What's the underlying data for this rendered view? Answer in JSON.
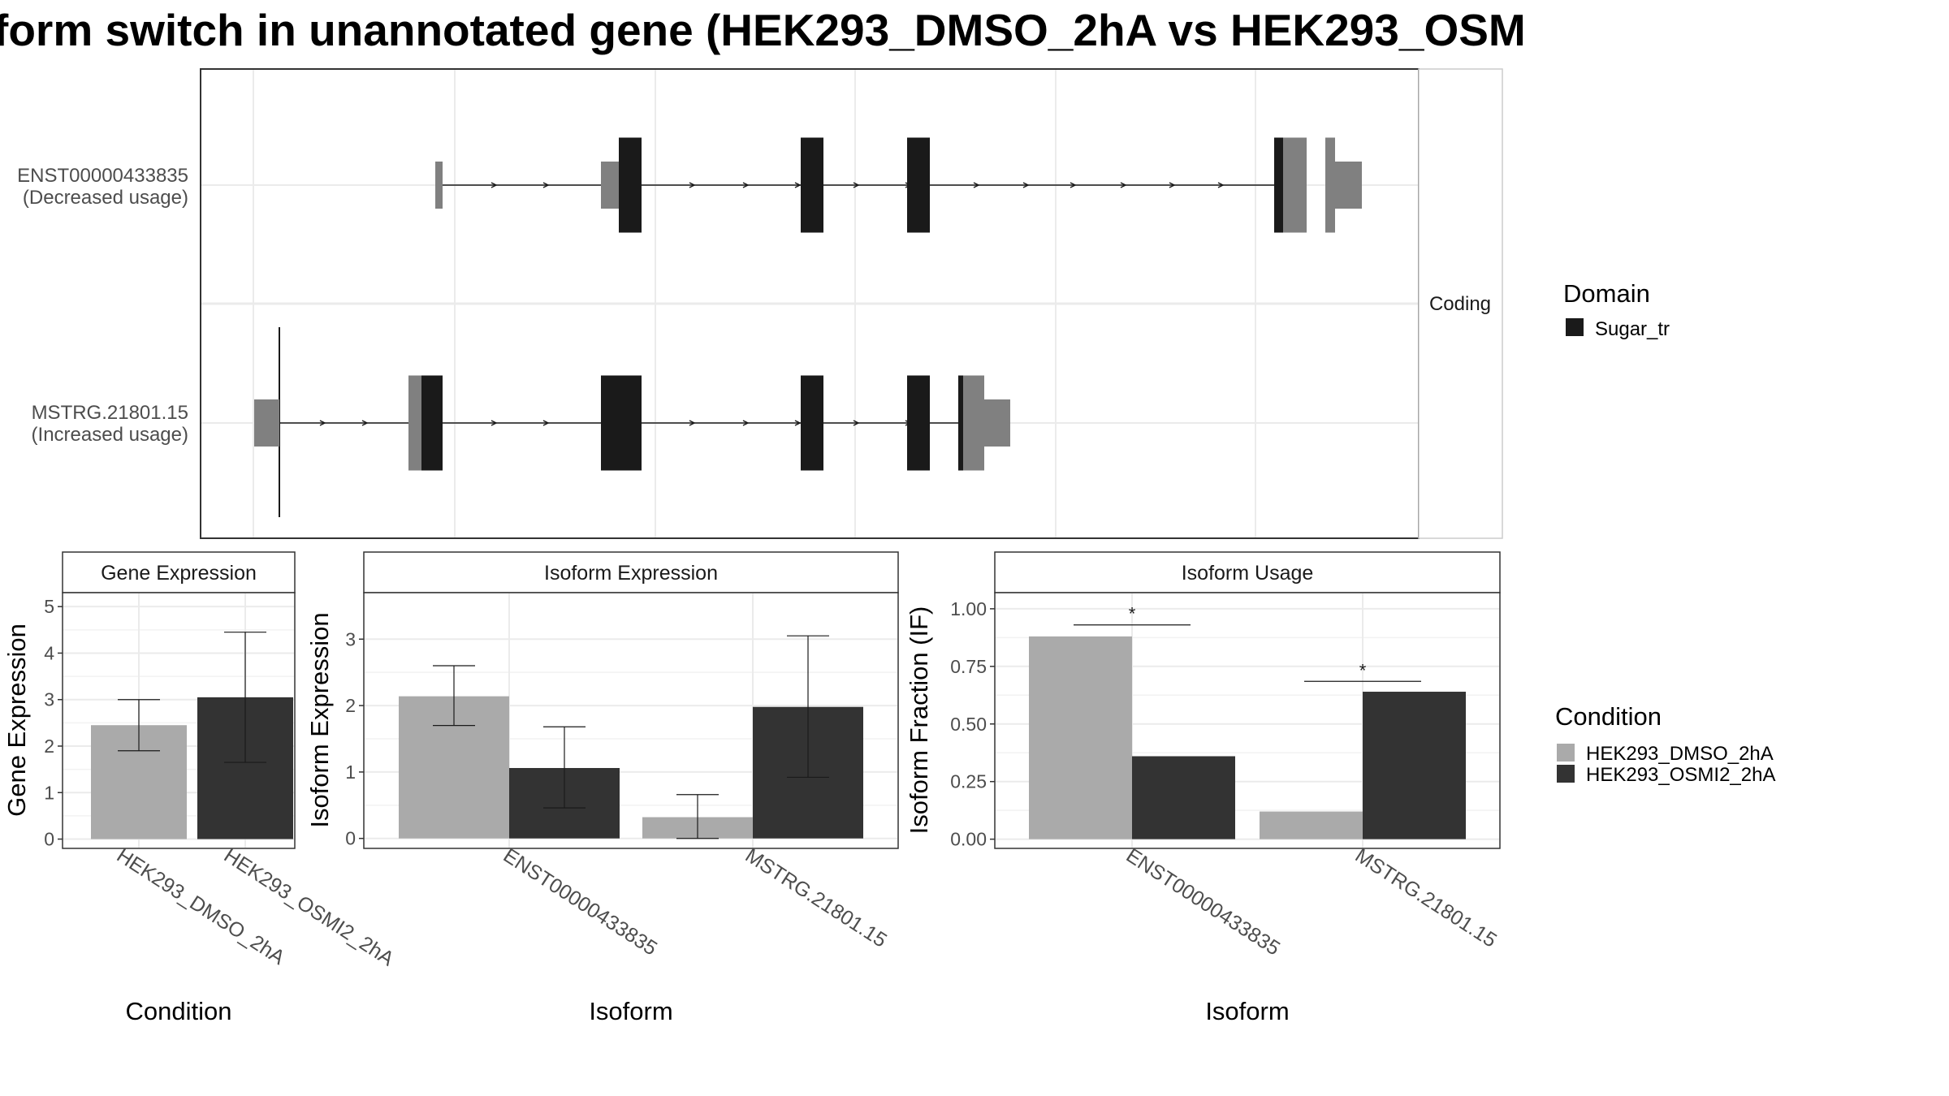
{
  "title": "form switch in unannotated gene (HEK293_DMSO_2hA vs HEK293_OSM",
  "colors": {
    "dmso": "#aaaaaa",
    "osmi": "#333333",
    "domain": "#1a1a1a",
    "utr": "#808080",
    "grid": "#ebebeb",
    "panel_border": "#333333",
    "strip_border": "#cccccc",
    "text": "#4d4d4d"
  },
  "transcript_plot": {
    "facet_label": "Coding",
    "isoforms": [
      {
        "id": "ENST00000433835",
        "usage": "(Decreased usage)"
      },
      {
        "id": "MSTRG.21801.15",
        "usage": "(Increased usage)"
      }
    ],
    "domain_legend": {
      "title": "Domain",
      "items": [
        "Sugar_tr"
      ]
    }
  },
  "chart_data": [
    {
      "type": "bar",
      "title": "Gene Expression",
      "xlabel": "Condition",
      "ylabel": "Gene Expression",
      "categories": [
        "HEK293_DMSO_2hA",
        "HEK293_OSMI2_2hA"
      ],
      "values": [
        2.45,
        3.05
      ],
      "error_low": [
        1.9,
        1.65
      ],
      "error_high": [
        3.0,
        4.45
      ],
      "ylim": [
        -0.2,
        5.3
      ],
      "yticks": [
        "0",
        "1",
        "2",
        "3",
        "4",
        "5"
      ],
      "ytick_values": [
        0,
        1,
        2,
        3,
        4,
        5
      ]
    },
    {
      "type": "bar",
      "title": "Isoform Expression",
      "xlabel": "Isoform",
      "ylabel": "Isoform Expression",
      "categories": [
        "ENST00000433835",
        "MSTRG.21801.15"
      ],
      "series": [
        {
          "name": "HEK293_DMSO_2hA",
          "values": [
            2.14,
            0.32
          ],
          "error_low": [
            1.7,
            0.0
          ],
          "error_high": [
            2.6,
            0.66
          ]
        },
        {
          "name": "HEK293_OSMI2_2hA",
          "values": [
            1.06,
            1.98
          ],
          "error_low": [
            0.46,
            0.92
          ],
          "error_high": [
            1.68,
            3.05
          ]
        }
      ],
      "ylim": [
        -0.15,
        3.7
      ],
      "yticks": [
        "0",
        "1",
        "2",
        "3"
      ],
      "ytick_values": [
        0,
        1,
        2,
        3
      ]
    },
    {
      "type": "bar",
      "title": "Isoform Usage",
      "xlabel": "Isoform",
      "ylabel": "Isoform Fraction (IF)",
      "categories": [
        "ENST00000433835",
        "MSTRG.21801.15"
      ],
      "series": [
        {
          "name": "HEK293_DMSO_2hA",
          "values": [
            0.88,
            0.12
          ]
        },
        {
          "name": "HEK293_OSMI2_2hA",
          "values": [
            0.36,
            0.64
          ]
        }
      ],
      "significance": [
        "*",
        "*"
      ],
      "significance_level": [
        0.93,
        0.685
      ],
      "ylim": [
        -0.04,
        1.07
      ],
      "yticks": [
        "0.00",
        "0.25",
        "0.50",
        "0.75",
        "1.00"
      ],
      "ytick_values": [
        0,
        0.25,
        0.5,
        0.75,
        1.0
      ]
    }
  ],
  "condition_legend": {
    "title": "Condition",
    "items": [
      "HEK293_DMSO_2hA",
      "HEK293_OSMI2_2hA"
    ]
  }
}
